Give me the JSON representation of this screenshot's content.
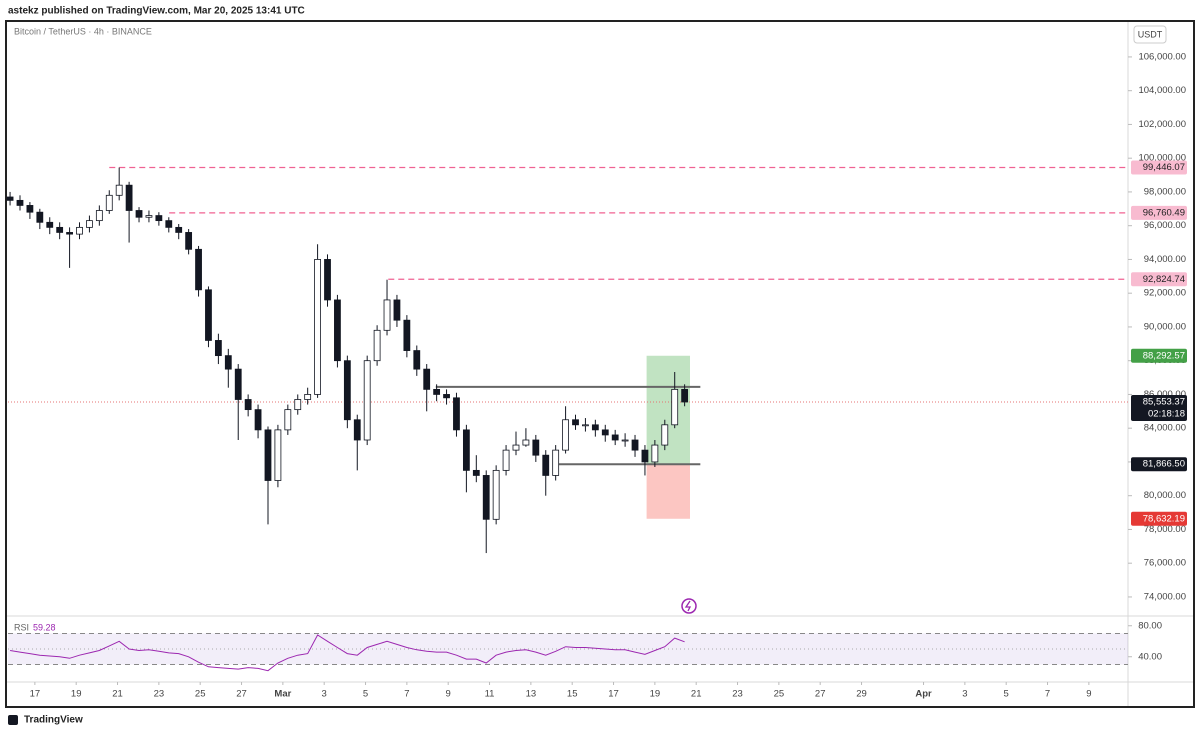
{
  "header": "astekz published on TradingView.com, Mar 20, 2025 13:41 UTC",
  "footer": "TradingView",
  "chart_data": {
    "type": "candlestick",
    "title": "Bitcoin / TetherUS · 4h · BINANCE",
    "currency": "USDT",
    "x": [
      -1.2,
      -0.72,
      -0.24,
      0.24,
      0.72,
      1.2,
      1.68,
      2.16,
      2.64,
      3.12,
      3.6,
      4.08,
      4.56,
      5.04,
      5.52,
      6,
      6.48,
      6.96,
      7.44,
      7.92,
      8.4,
      8.88,
      9.36,
      9.84,
      10.32,
      10.8,
      11.28,
      11.76,
      12.24,
      12.72,
      13.2,
      13.68,
      14.16,
      14.64,
      15.12,
      15.6,
      16.08,
      16.56,
      17.04,
      17.52,
      18,
      18.48,
      18.96,
      19.44,
      19.92,
      20.4,
      20.88,
      21.36,
      21.84,
      22.32,
      22.8,
      23.28,
      23.76,
      24.24,
      24.72,
      25.2,
      25.68,
      26.16,
      26.64,
      27.12,
      27.6,
      28.08,
      28.56,
      29.04,
      29.52,
      30,
      30.48,
      30.96,
      31.44
    ],
    "open": [
      97700,
      97500,
      97200,
      96800,
      96200,
      95900,
      95600,
      95500,
      95900,
      96300,
      96900,
      97800,
      98400,
      96900,
      96500,
      96600,
      96300,
      95900,
      95600,
      94600,
      92200,
      89200,
      88300,
      87500,
      85700,
      85100,
      83900,
      80900,
      83900,
      85100,
      85700,
      86000,
      94000,
      91600,
      88000,
      84500,
      83300,
      88000,
      89800,
      91600,
      90400,
      88600,
      87500,
      86300,
      86000,
      85800,
      83900,
      81500,
      81200,
      78600,
      81500,
      82700,
      83000,
      83300,
      82400,
      81200,
      82700,
      84500,
      84200,
      84200,
      83900,
      83600,
      83300,
      83300,
      82700,
      82000,
      83000,
      84200,
      86300
    ],
    "high": [
      98000,
      97800,
      97400,
      97000,
      96500,
      96200,
      95900,
      96200,
      96600,
      97200,
      98100,
      99446,
      98600,
      97100,
      96900,
      96800,
      96500,
      96100,
      95800,
      94800,
      92400,
      89600,
      88700,
      87800,
      86000,
      85400,
      84100,
      84200,
      85400,
      86000,
      86400,
      94900,
      94300,
      91900,
      88300,
      84800,
      88300,
      90100,
      92800,
      91900,
      90700,
      88900,
      87800,
      86600,
      86300,
      86100,
      84200,
      82400,
      81500,
      81800,
      83000,
      83800,
      84000,
      83600,
      82700,
      83000,
      85300,
      84800,
      84600,
      84500,
      84200,
      83900,
      83700,
      83600,
      83000,
      83300,
      84500,
      87330,
      86600
    ],
    "low": [
      97200,
      96900,
      96400,
      95800,
      95500,
      95200,
      93500,
      95200,
      95600,
      96000,
      96700,
      97500,
      95000,
      96200,
      96200,
      96000,
      95600,
      95200,
      94300,
      91800,
      88800,
      87800,
      86400,
      83300,
      84700,
      83400,
      78300,
      80500,
      83600,
      84800,
      85400,
      85800,
      91200,
      87600,
      84000,
      81500,
      83000,
      87700,
      89500,
      90000,
      88200,
      87100,
      85000,
      85600,
      85400,
      83500,
      80200,
      80800,
      76600,
      78300,
      81200,
      82400,
      82900,
      82000,
      80000,
      80900,
      82500,
      83900,
      83800,
      83500,
      83200,
      83000,
      82900,
      82300,
      81200,
      81700,
      82700,
      84000,
      85300
    ],
    "close": [
      97500,
      97200,
      96800,
      96200,
      95900,
      95600,
      95500,
      95900,
      96300,
      96900,
      97800,
      98400,
      96900,
      96500,
      96600,
      96300,
      95900,
      95600,
      94600,
      92200,
      89200,
      88300,
      87500,
      85700,
      85100,
      83900,
      80900,
      83900,
      85100,
      85700,
      86000,
      94000,
      91600,
      88000,
      84500,
      83300,
      88000,
      89800,
      91600,
      90400,
      88600,
      87500,
      86300,
      86000,
      85800,
      83900,
      81500,
      81200,
      78600,
      81500,
      82700,
      83000,
      83300,
      82400,
      81200,
      82700,
      84500,
      84200,
      84200,
      83900,
      83600,
      83300,
      83300,
      82700,
      82000,
      83000,
      84200,
      86300,
      85553.37
    ],
    "up_color": "#ffffff",
    "down_color": "#131722",
    "xlim": [
      -1.3,
      52.7
    ],
    "xticks": [
      {
        "value": 0,
        "label": "17"
      },
      {
        "value": 2,
        "label": "19"
      },
      {
        "value": 4,
        "label": "21"
      },
      {
        "value": 6,
        "label": "23"
      },
      {
        "value": 8,
        "label": "25"
      },
      {
        "value": 10,
        "label": "27"
      },
      {
        "value": 12,
        "label": "Mar"
      },
      {
        "value": 14,
        "label": "3"
      },
      {
        "value": 16,
        "label": "5"
      },
      {
        "value": 18,
        "label": "7"
      },
      {
        "value": 20,
        "label": "9"
      },
      {
        "value": 22,
        "label": "11"
      },
      {
        "value": 24,
        "label": "13"
      },
      {
        "value": 26,
        "label": "15"
      },
      {
        "value": 28,
        "label": "17"
      },
      {
        "value": 30,
        "label": "19"
      },
      {
        "value": 32,
        "label": "21"
      },
      {
        "value": 34,
        "label": "23"
      },
      {
        "value": 36,
        "label": "25"
      },
      {
        "value": 38,
        "label": "27"
      },
      {
        "value": 40,
        "label": "29"
      },
      {
        "value": 43,
        "label": "Apr"
      },
      {
        "value": 45,
        "label": "3"
      },
      {
        "value": 47,
        "label": "5"
      },
      {
        "value": 49,
        "label": "7"
      },
      {
        "value": 51,
        "label": "9"
      }
    ],
    "ylim": [
      72930,
      108070
    ],
    "yticks": [
      {
        "value": 74000,
        "label": "74,000.00"
      },
      {
        "value": 76000,
        "label": "76,000.00"
      },
      {
        "value": 78000,
        "label": "78,000.00"
      },
      {
        "value": 80000,
        "label": "80,000.00"
      },
      {
        "value": 82000,
        "label": "82,000.00"
      },
      {
        "value": 84000,
        "label": "84,000.00"
      },
      {
        "value": 86000,
        "label": "86,000.00"
      },
      {
        "value": 88000,
        "label": "88,000.00"
      },
      {
        "value": 90000,
        "label": "90,000.00"
      },
      {
        "value": 92000,
        "label": "92,000.00"
      },
      {
        "value": 94000,
        "label": "94,000.00"
      },
      {
        "value": 96000,
        "label": "96,000.00"
      },
      {
        "value": 98000,
        "label": "98,000.00"
      },
      {
        "value": 100000,
        "label": "100,000.00"
      },
      {
        "value": 102000,
        "label": "102,000.00"
      },
      {
        "value": 104000,
        "label": "104,000.00"
      },
      {
        "value": 106000,
        "label": "106,000.00"
      }
    ],
    "levels": [
      {
        "value": 99446.07,
        "label": "99,446.07",
        "start_x": 3.6
      },
      {
        "value": 96760.49,
        "label": "96,760.49",
        "start_x": 6.5
      },
      {
        "value": 92824.74,
        "label": "92,824.74",
        "start_x": 17.1
      }
    ],
    "level_color": "#f06292",
    "resistance": {
      "value": 86450,
      "x": [
        19.4,
        32.2
      ]
    },
    "position": {
      "target": {
        "value": 88292.57,
        "label": "88,292.57"
      },
      "entry": {
        "value": 81866.5,
        "label": "81,866.50"
      },
      "stop": {
        "value": 78632.19,
        "label": "78,632.19"
      },
      "x": [
        29.6,
        31.7
      ],
      "line_x": [
        25.2,
        32.2
      ]
    },
    "last_price": {
      "value": 85553.37,
      "label": "85,553.37",
      "countdown": "02:18:18"
    },
    "rsi": {
      "title": "RSI",
      "color": "#9c27b0",
      "values": [
        48,
        46,
        44,
        42,
        41,
        40,
        38,
        42,
        45,
        48,
        54,
        60,
        50,
        48,
        49,
        47,
        45,
        44,
        40,
        33,
        27,
        26,
        25,
        24,
        26,
        25,
        22,
        32,
        38,
        42,
        44,
        68,
        60,
        52,
        44,
        42,
        52,
        56,
        60,
        56,
        52,
        49,
        47,
        46,
        46,
        42,
        37,
        37,
        32,
        42,
        46,
        48,
        49,
        46,
        42,
        47,
        53,
        52,
        52,
        51,
        50,
        49,
        49,
        46,
        43,
        48,
        53,
        64,
        59.28
      ],
      "ylim": [
        10,
        90
      ],
      "yticks": [
        {
          "value": 80,
          "label": "80.00"
        },
        {
          "value": 40,
          "label": "40.00"
        }
      ],
      "bands": [
        70,
        30
      ],
      "midline": 50
    }
  }
}
